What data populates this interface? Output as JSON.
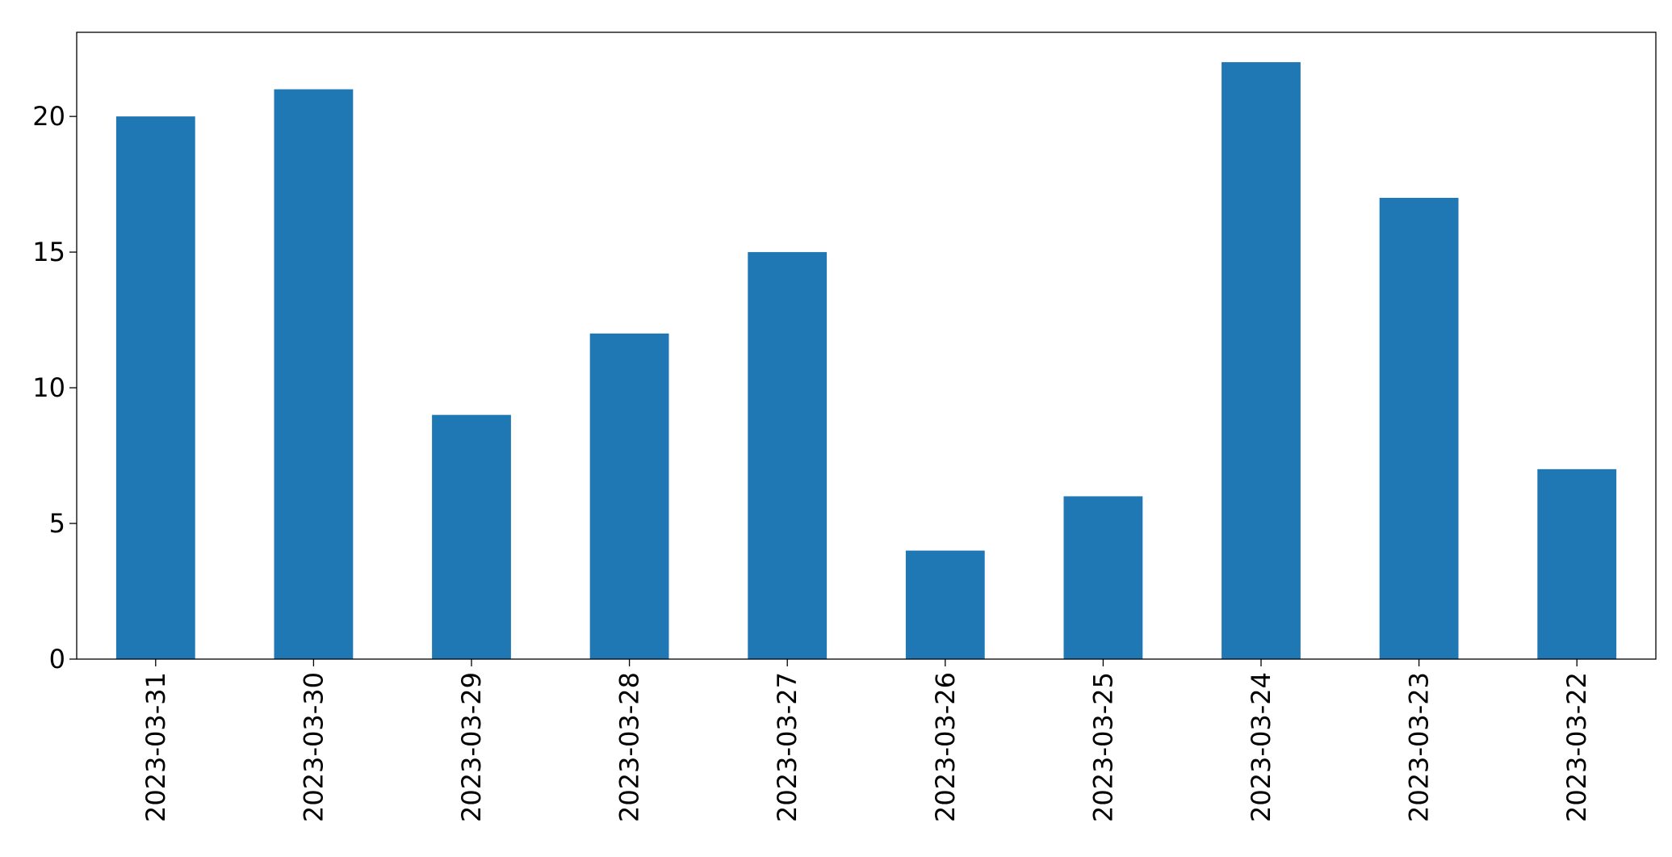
{
  "chart_data": {
    "type": "bar",
    "categories": [
      "2023-03-31",
      "2023-03-30",
      "2023-03-29",
      "2023-03-28",
      "2023-03-27",
      "2023-03-26",
      "2023-03-25",
      "2023-03-24",
      "2023-03-23",
      "2023-03-22"
    ],
    "values": [
      20,
      21,
      9,
      12,
      15,
      4,
      6,
      22,
      17,
      7
    ],
    "color": "#1f77b4",
    "ylim": [
      0,
      23.1
    ],
    "yticks": [
      0,
      5,
      10,
      15,
      20
    ],
    "grid": false
  }
}
